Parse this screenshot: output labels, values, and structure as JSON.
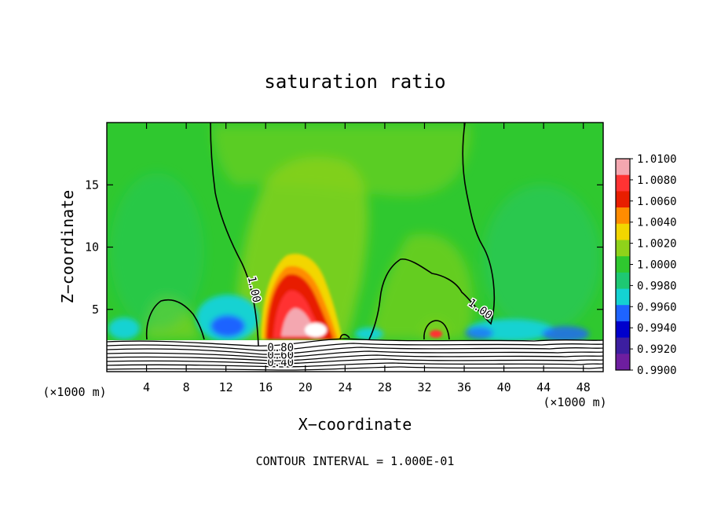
{
  "chart_data": {
    "type": "heatmap",
    "title": "saturation ratio",
    "xlabel": "X−coordinate",
    "ylabel": "Z−coordinate",
    "x_unit": "(×1000 m)",
    "z_unit": "(×1000 m)",
    "xlim": [
      0,
      50
    ],
    "zlim": [
      0,
      20
    ],
    "x_ticks": [
      4,
      8,
      12,
      16,
      20,
      24,
      28,
      32,
      36,
      40,
      44,
      48
    ],
    "z_ticks": [
      5,
      10,
      15
    ],
    "colorbar": {
      "levels": [
        "1.0100",
        "1.0080",
        "1.0060",
        "1.0040",
        "1.0020",
        "1.0000",
        "0.9980",
        "0.9960",
        "0.9940",
        "0.9920",
        "0.9900"
      ],
      "colors": [
        "#f4a7b0",
        "#ff3333",
        "#e81e00",
        "#ff8c00",
        "#f2d600",
        "#8fd21a",
        "#2fc82f",
        "#1ec873",
        "#14d2d2",
        "#1e64ff",
        "#0000cc",
        "#3c1ea0",
        "#6e1ea0"
      ]
    },
    "contour_labels": [
      {
        "text": "1.00",
        "x": 14.8,
        "z": 6.6,
        "angle": 78
      },
      {
        "text": "1.00",
        "x": 37.6,
        "z": 5.0,
        "angle": 35
      },
      {
        "text": "0.40",
        "x": 17.5,
        "z": 0.7,
        "angle": 0
      },
      {
        "text": "0.60",
        "x": 17.5,
        "z": 1.3,
        "angle": 0
      },
      {
        "text": "0.80",
        "x": 17.5,
        "z": 1.9,
        "angle": 0
      }
    ],
    "annotation": "CONTOUR INTERVAL = 1.000E-01"
  }
}
